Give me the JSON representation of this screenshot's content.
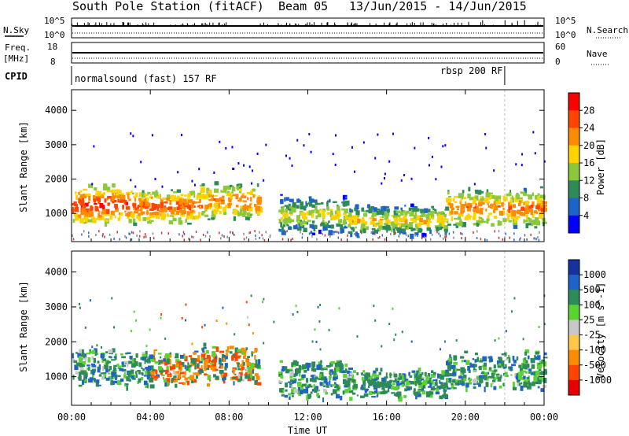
{
  "header": {
    "title": "South Pole Station (fitACF)",
    "beam": "Beam 05",
    "dates": "13/Jun/2015 - 14/Jun/2015"
  },
  "sky_panel": {
    "left_label": "N.Sky",
    "left_ticks": [
      "10^5",
      "10^0"
    ],
    "right_label": "N.Search",
    "right_ticks": [
      "10^5",
      "10^0"
    ]
  },
  "freq_panel": {
    "left_label_1": "Freq.",
    "left_label_2": "[MHz]",
    "left_ticks": [
      "18",
      "8"
    ],
    "right_label": "Nave",
    "right_ticks": [
      "60",
      "0"
    ]
  },
  "cpid": {
    "label": "CPID",
    "mode_1": "normalsound (fast) 157 RF",
    "mode_2": "rbsp 200 RF",
    "switch_hour": 22
  },
  "power_panel": {
    "ylabel": "Slant Range [km]",
    "yticks": [
      "4000",
      "3000",
      "2000",
      "1000"
    ],
    "cbar_label": "Power [dB]",
    "cbar_ticks": [
      "28",
      "24",
      "20",
      "16",
      "12",
      "8",
      "4"
    ],
    "cbar_colors": [
      "#ff0000",
      "#ff4500",
      "#ff8c00",
      "#ffd200",
      "#8cc83c",
      "#2e8b57",
      "#1e64c8",
      "#0000ff"
    ]
  },
  "velocity_panel": {
    "ylabel": "Slant Range [km]",
    "yticks": [
      "4000",
      "3000",
      "2000",
      "1000"
    ],
    "cbar_label": "Velocity [m s^-1]",
    "cbar_ticks": [
      "1000",
      "500",
      "100",
      "25",
      "-25",
      "-100",
      "-500",
      "-1000"
    ],
    "cbar_colors": [
      "#1432a0",
      "#1e64c8",
      "#2e8b57",
      "#5ad232",
      "#c8c8c8",
      "#ffc84b",
      "#ff8c00",
      "#ff4500",
      "#e60000"
    ]
  },
  "x_axis": {
    "label": "Time UT",
    "ticks": [
      "00:00",
      "04:00",
      "08:00",
      "12:00",
      "16:00",
      "20:00",
      "00:00"
    ]
  },
  "chart_data": {
    "type": "heatmap",
    "x_range_hours": [
      0,
      24
    ],
    "y_range_km": [
      180,
      4600
    ],
    "power_echo_bands": [
      {
        "t0": 0.0,
        "t1": 3.0,
        "r0": 700,
        "r1": 1900,
        "core_db": 28
      },
      {
        "t0": 3.0,
        "t1": 6.5,
        "r0": 700,
        "r1": 1800,
        "core_db": 26
      },
      {
        "t0": 6.5,
        "t1": 9.5,
        "r0": 800,
        "r1": 2000,
        "core_db": 24
      },
      {
        "t0": 10.5,
        "t1": 14.0,
        "r0": 400,
        "r1": 1600,
        "core_db": 18
      },
      {
        "t0": 14.0,
        "t1": 19.0,
        "r0": 400,
        "r1": 1300,
        "core_db": 20
      },
      {
        "t0": 19.0,
        "t1": 24.0,
        "r0": 600,
        "r1": 1800,
        "core_db": 24
      }
    ]
  }
}
